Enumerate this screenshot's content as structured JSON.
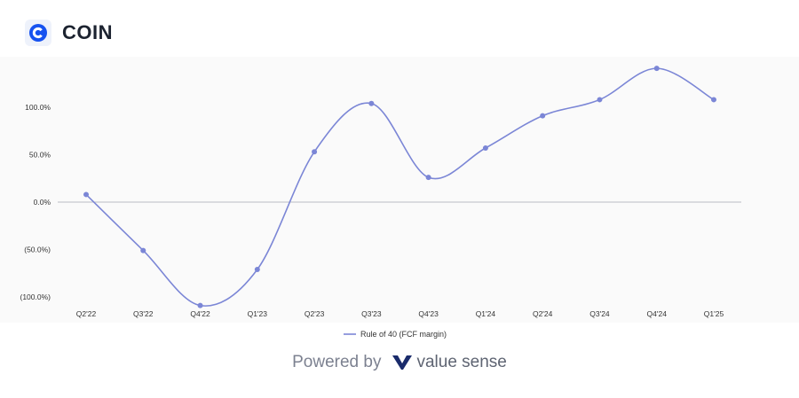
{
  "header": {
    "ticker": "COIN",
    "logo_icon": "coinbase-logo-icon"
  },
  "footer": {
    "powered_by": "Powered by",
    "brand": "value sense",
    "brand_icon": "valuesense-v-icon"
  },
  "colors": {
    "line": "#7b86d6",
    "zero_line": "#b9bcc4",
    "axis_text": "#333333",
    "brand_blue": "#1652f0",
    "brand_navy": "#1a2b6b"
  },
  "chart_data": {
    "type": "line",
    "categories": [
      "Q2'22",
      "Q3'22",
      "Q4'22",
      "Q1'23",
      "Q2'23",
      "Q3'23",
      "Q4'23",
      "Q1'24",
      "Q2'24",
      "Q3'24",
      "Q4'24",
      "Q1'25"
    ],
    "series": [
      {
        "name": "Rule of 40 (FCF margin)",
        "values": [
          8,
          -51,
          -109,
          -71,
          53,
          104,
          26,
          57,
          91,
          108,
          141,
          108
        ]
      }
    ],
    "yticks": [
      100,
      50,
      0,
      -50,
      -100
    ],
    "ytick_labels": [
      "100.0%",
      "50.0%",
      "0.0%",
      "(50.0%)",
      "(100.0%)"
    ],
    "legend_position": "bottom",
    "grid": false,
    "zero_line": true
  }
}
